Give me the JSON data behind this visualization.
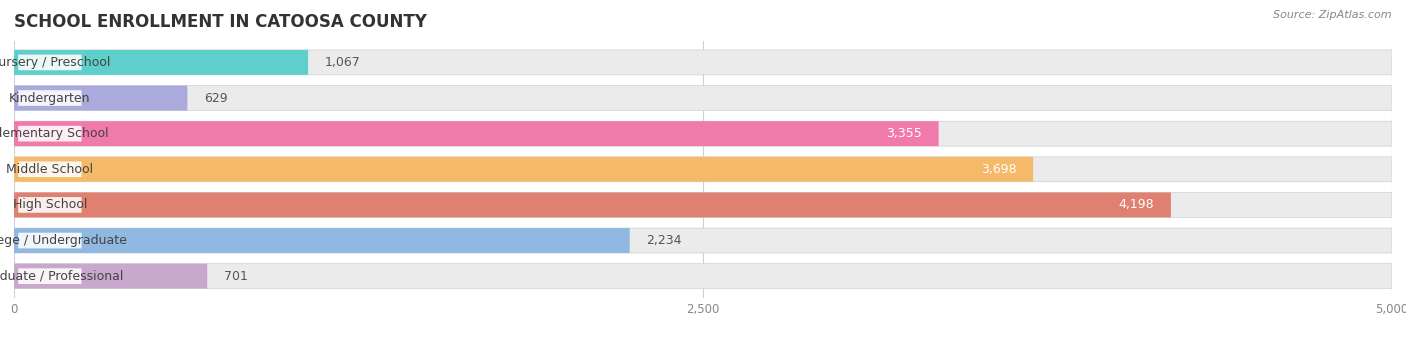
{
  "title": "SCHOOL ENROLLMENT IN CATOOSA COUNTY",
  "source": "Source: ZipAtlas.com",
  "categories": [
    "Nursery / Preschool",
    "Kindergarten",
    "Elementary School",
    "Middle School",
    "High School",
    "College / Undergraduate",
    "Graduate / Professional"
  ],
  "values": [
    1067,
    629,
    3355,
    3698,
    4198,
    2234,
    701
  ],
  "bar_colors": [
    "#5ecfca",
    "#aaaadc",
    "#f07aaa",
    "#f5b96a",
    "#e08070",
    "#90b8e0",
    "#c8a8cc"
  ],
  "bar_bg_color": "#ebebeb",
  "value_inside": [
    false,
    false,
    true,
    true,
    true,
    false,
    false
  ],
  "xlim": [
    0,
    5000
  ],
  "xticks": [
    0,
    2500,
    5000
  ],
  "xtick_labels": [
    "0",
    "2,500",
    "5,000"
  ],
  "title_fontsize": 12,
  "source_fontsize": 8,
  "bar_label_fontsize": 9,
  "category_fontsize": 9,
  "background_color": "#ffffff"
}
